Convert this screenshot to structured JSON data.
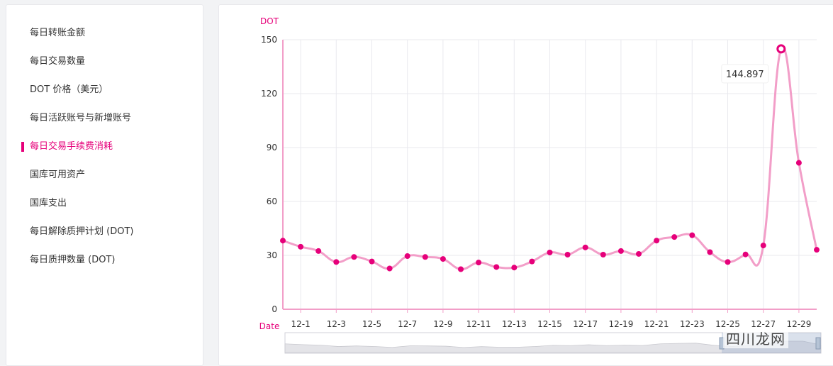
{
  "sidebar": {
    "items": [
      {
        "label": "每日转账金额",
        "active": false
      },
      {
        "label": "每日交易数量",
        "active": false
      },
      {
        "label": "DOT 价格（美元）",
        "active": false
      },
      {
        "label": "每日活跃账号与新增账号",
        "active": false
      },
      {
        "label": "每日交易手续费消耗",
        "active": true
      },
      {
        "label": "国库可用资产",
        "active": false
      },
      {
        "label": "国库支出",
        "active": false
      },
      {
        "label": "每日解除质押计划 (DOT)",
        "active": false
      },
      {
        "label": "每日质押数量 (DOT)",
        "active": false
      }
    ]
  },
  "watermark": "四川龙网",
  "colors": {
    "accent": "#e6007a",
    "line": "#f29ec8",
    "grid": "#e9e9ee"
  },
  "chart_data": {
    "type": "line",
    "ylabel": "DOT",
    "xlabel": "Date",
    "ylim": [
      0,
      150
    ],
    "yticks": [
      0,
      30,
      60,
      90,
      120,
      150
    ],
    "xticks": [
      "12-1",
      "12-3",
      "12-5",
      "12-7",
      "12-9",
      "12-11",
      "12-13",
      "12-15",
      "12-17",
      "12-19",
      "12-21",
      "12-23",
      "12-25",
      "12-27",
      "12-29"
    ],
    "x": [
      "11-30",
      "12-1",
      "12-2",
      "12-3",
      "12-4",
      "12-5",
      "12-6",
      "12-7",
      "12-8",
      "12-9",
      "12-10",
      "12-11",
      "12-12",
      "12-13",
      "12-14",
      "12-15",
      "12-16",
      "12-17",
      "12-18",
      "12-19",
      "12-20",
      "12-21",
      "12-22",
      "12-23",
      "12-24",
      "12-25",
      "12-26",
      "12-27",
      "12-28",
      "12-29",
      "12-30"
    ],
    "series": [
      {
        "values": [
          38.2,
          34.8,
          32.4,
          26.3,
          29.1,
          26.6,
          22.7,
          29.6,
          29.1,
          28.0,
          22.3,
          26.0,
          23.5,
          23.2,
          26.6,
          31.6,
          30.4,
          34.4,
          30.4,
          32.4,
          30.8,
          38.2,
          40.2,
          41.2,
          31.8,
          26.3,
          30.5,
          35.5,
          144.897,
          81.5,
          33.1
        ]
      }
    ],
    "tooltip": {
      "label": "144.897",
      "point_index": 28
    },
    "grid": true
  }
}
